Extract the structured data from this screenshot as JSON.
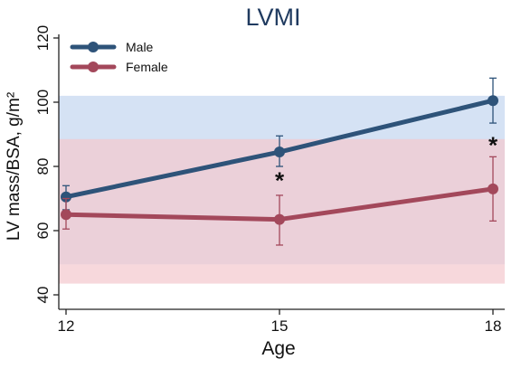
{
  "chart_data": {
    "type": "line",
    "title": "LVMI",
    "xlabel": "Age",
    "ylabel": "LV mass/BSA, g/m²",
    "x": [
      12,
      15,
      18
    ],
    "x_ticks": [
      "12",
      "15",
      "18"
    ],
    "xlim": [
      12,
      18
    ],
    "y_ticks": [
      "40",
      "60",
      "80",
      "100",
      "120"
    ],
    "ylim": [
      40,
      120
    ],
    "grid": false,
    "legend_position": "top-left",
    "series": [
      {
        "name": "Male",
        "color": "#2e5379",
        "values": [
          70.5,
          84.5,
          100.5
        ],
        "error_low": [
          66.5,
          80.0,
          93.5
        ],
        "error_high": [
          74.0,
          89.5,
          107.5
        ]
      },
      {
        "name": "Female",
        "color": "#a3485b",
        "values": [
          65.0,
          63.5,
          73.0
        ],
        "error_low": [
          60.5,
          55.5,
          63.0
        ],
        "error_high": [
          70.0,
          71.0,
          83.0
        ]
      }
    ],
    "reference_bands": [
      {
        "series": "Male",
        "range": [
          49.5,
          102
        ],
        "color": "#d5e2f4"
      },
      {
        "series": "Female",
        "range": [
          43.5,
          88.5
        ],
        "color": "#f4c9cf"
      }
    ],
    "annotations": [
      {
        "x": 15,
        "y": 76.5,
        "text": "*"
      },
      {
        "x": 18,
        "y": 87.5,
        "text": "*"
      }
    ]
  }
}
